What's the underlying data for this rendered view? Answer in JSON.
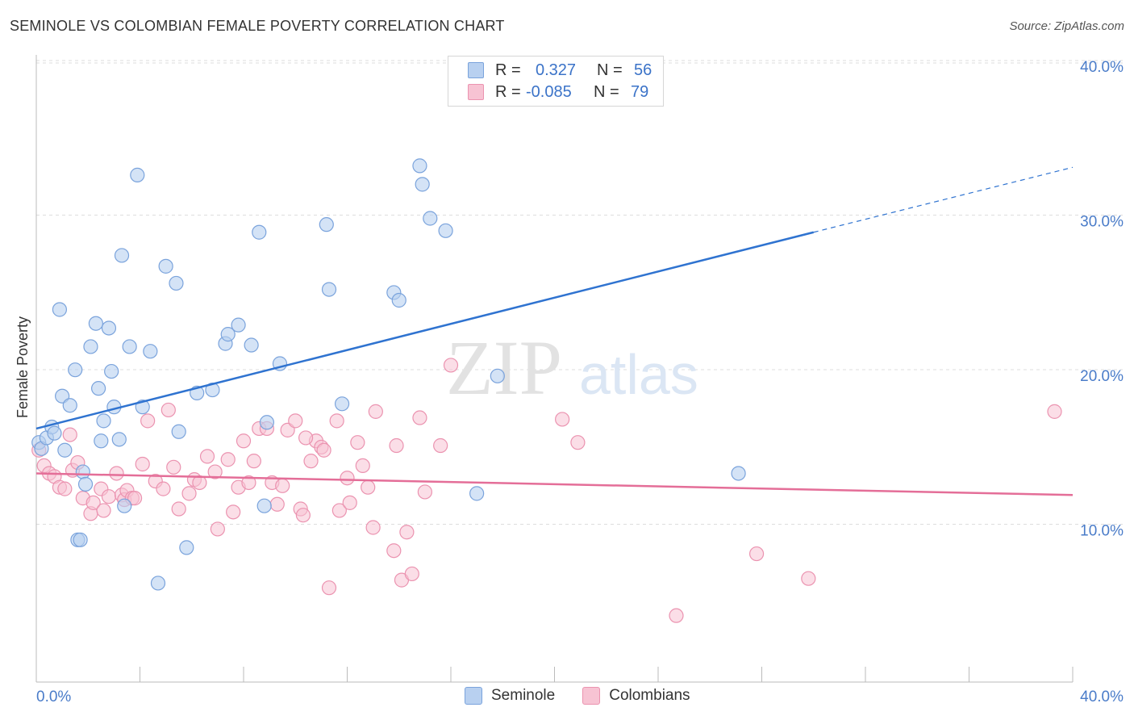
{
  "title": "SEMINOLE VS COLOMBIAN FEMALE POVERTY CORRELATION CHART",
  "source": "Source: ZipAtlas.com",
  "legend": {
    "rows": [
      {
        "r_label": "R =",
        "r_value": "0.327",
        "n_label": "N =",
        "n_value": "56"
      },
      {
        "r_label": "R =",
        "r_value": "-0.085",
        "n_label": "N =",
        "n_value": "79"
      }
    ]
  },
  "bottom_legend": [
    "Seminole",
    "Colombians"
  ],
  "colors": {
    "seminole_fill": "#b8d0f0",
    "seminole_stroke": "#7aa3dc",
    "seminole_line": "#2f73d0",
    "colombian_fill": "#f7c3d3",
    "colombian_stroke": "#eb93b0",
    "colombian_line": "#e46e98",
    "tick_text": "#4a7cc9",
    "grid": "#dddddd"
  },
  "watermark": {
    "zip": "ZIP",
    "atlas": "atlas"
  },
  "chart_data": {
    "type": "scatter",
    "title": "SEMINOLE VS COLOMBIAN FEMALE POVERTY CORRELATION CHART",
    "xlabel": "",
    "ylabel": "Female Poverty",
    "xlim": [
      0,
      40
    ],
    "ylim": [
      0,
      40
    ],
    "x_tick_labels": [
      "0.0%",
      "40.0%"
    ],
    "y_ticks": [
      10,
      20,
      30,
      40
    ],
    "y_tick_labels": [
      "10.0%",
      "20.0%",
      "30.0%",
      "40.0%"
    ],
    "grid": true,
    "legend_position": "top-center",
    "series": [
      {
        "name": "Seminole",
        "trend": {
          "x": [
            0,
            30
          ],
          "y": [
            16.4,
            29.1
          ],
          "dashed_to": [
            40,
            33.3
          ]
        },
        "points": [
          [
            0.1,
            15.5
          ],
          [
            0.2,
            15.1
          ],
          [
            0.4,
            15.8
          ],
          [
            0.6,
            16.5
          ],
          [
            0.7,
            16.1
          ],
          [
            0.9,
            24.1
          ],
          [
            1.0,
            18.5
          ],
          [
            1.1,
            15.0
          ],
          [
            1.3,
            17.9
          ],
          [
            1.5,
            20.2
          ],
          [
            1.6,
            9.2
          ],
          [
            1.7,
            9.2
          ],
          [
            1.8,
            13.6
          ],
          [
            1.9,
            12.8
          ],
          [
            2.1,
            21.7
          ],
          [
            2.3,
            23.2
          ],
          [
            2.4,
            19.0
          ],
          [
            2.5,
            15.6
          ],
          [
            2.6,
            16.9
          ],
          [
            2.8,
            22.9
          ],
          [
            2.9,
            20.1
          ],
          [
            3.0,
            17.8
          ],
          [
            3.2,
            15.7
          ],
          [
            3.3,
            27.6
          ],
          [
            3.4,
            11.4
          ],
          [
            3.6,
            21.7
          ],
          [
            3.9,
            32.8
          ],
          [
            4.1,
            17.8
          ],
          [
            4.4,
            21.4
          ],
          [
            4.7,
            6.4
          ],
          [
            5.0,
            26.9
          ],
          [
            5.4,
            25.8
          ],
          [
            5.5,
            16.2
          ],
          [
            5.8,
            8.7
          ],
          [
            6.2,
            18.7
          ],
          [
            6.8,
            18.9
          ],
          [
            7.3,
            21.9
          ],
          [
            7.4,
            22.5
          ],
          [
            7.8,
            23.1
          ],
          [
            8.3,
            21.8
          ],
          [
            8.6,
            29.1
          ],
          [
            8.8,
            11.4
          ],
          [
            8.9,
            16.8
          ],
          [
            9.4,
            20.6
          ],
          [
            11.2,
            29.6
          ],
          [
            11.3,
            25.4
          ],
          [
            11.8,
            18.0
          ],
          [
            13.8,
            25.2
          ],
          [
            14.0,
            24.7
          ],
          [
            14.8,
            33.4
          ],
          [
            14.9,
            32.2
          ],
          [
            15.2,
            30.0
          ],
          [
            15.8,
            29.2
          ],
          [
            17.0,
            12.2
          ],
          [
            27.1,
            13.5
          ],
          [
            17.8,
            19.8
          ]
        ]
      },
      {
        "name": "Colombians",
        "trend": {
          "x": [
            0,
            40
          ],
          "y": [
            13.5,
            12.1
          ]
        },
        "points": [
          [
            0.1,
            15.0
          ],
          [
            0.3,
            14.0
          ],
          [
            0.5,
            13.5
          ],
          [
            0.7,
            13.3
          ],
          [
            0.9,
            12.6
          ],
          [
            1.1,
            12.5
          ],
          [
            1.3,
            16.0
          ],
          [
            1.4,
            13.7
          ],
          [
            1.6,
            14.2
          ],
          [
            1.8,
            11.9
          ],
          [
            2.1,
            10.9
          ],
          [
            2.2,
            11.6
          ],
          [
            2.5,
            12.5
          ],
          [
            2.6,
            11.1
          ],
          [
            2.8,
            12.0
          ],
          [
            3.1,
            13.5
          ],
          [
            3.3,
            12.1
          ],
          [
            3.4,
            11.8
          ],
          [
            3.5,
            12.4
          ],
          [
            3.7,
            11.9
          ],
          [
            3.8,
            11.9
          ],
          [
            4.1,
            14.1
          ],
          [
            4.3,
            16.9
          ],
          [
            4.6,
            13.0
          ],
          [
            4.9,
            12.5
          ],
          [
            5.1,
            17.6
          ],
          [
            5.3,
            13.9
          ],
          [
            5.5,
            11.2
          ],
          [
            5.9,
            12.2
          ],
          [
            6.1,
            13.1
          ],
          [
            6.3,
            12.9
          ],
          [
            6.6,
            14.6
          ],
          [
            6.9,
            13.6
          ],
          [
            7.0,
            9.9
          ],
          [
            7.4,
            14.4
          ],
          [
            7.6,
            11.0
          ],
          [
            7.8,
            12.6
          ],
          [
            8.0,
            15.6
          ],
          [
            8.2,
            12.9
          ],
          [
            8.4,
            14.3
          ],
          [
            8.6,
            16.4
          ],
          [
            8.9,
            16.4
          ],
          [
            9.1,
            12.9
          ],
          [
            9.3,
            11.5
          ],
          [
            9.5,
            12.7
          ],
          [
            9.7,
            16.3
          ],
          [
            10.0,
            16.9
          ],
          [
            10.2,
            11.2
          ],
          [
            10.3,
            10.8
          ],
          [
            10.6,
            14.3
          ],
          [
            10.8,
            15.6
          ],
          [
            11.0,
            15.2
          ],
          [
            11.1,
            15.0
          ],
          [
            11.3,
            6.1
          ],
          [
            11.6,
            16.9
          ],
          [
            11.7,
            11.1
          ],
          [
            12.1,
            11.6
          ],
          [
            12.4,
            15.5
          ],
          [
            12.6,
            14.0
          ],
          [
            12.8,
            12.6
          ],
          [
            13.0,
            10.0
          ],
          [
            13.1,
            17.5
          ],
          [
            13.8,
            8.5
          ],
          [
            13.9,
            15.3
          ],
          [
            14.1,
            6.6
          ],
          [
            14.3,
            9.7
          ],
          [
            14.5,
            7.0
          ],
          [
            14.8,
            17.1
          ],
          [
            15.0,
            12.3
          ],
          [
            15.6,
            15.3
          ],
          [
            16.0,
            20.5
          ],
          [
            20.3,
            17.0
          ],
          [
            20.9,
            15.5
          ],
          [
            24.7,
            4.3
          ],
          [
            27.8,
            8.3
          ],
          [
            29.8,
            6.7
          ],
          [
            39.3,
            17.5
          ],
          [
            10.4,
            15.8
          ],
          [
            12.0,
            13.2
          ]
        ]
      }
    ]
  }
}
